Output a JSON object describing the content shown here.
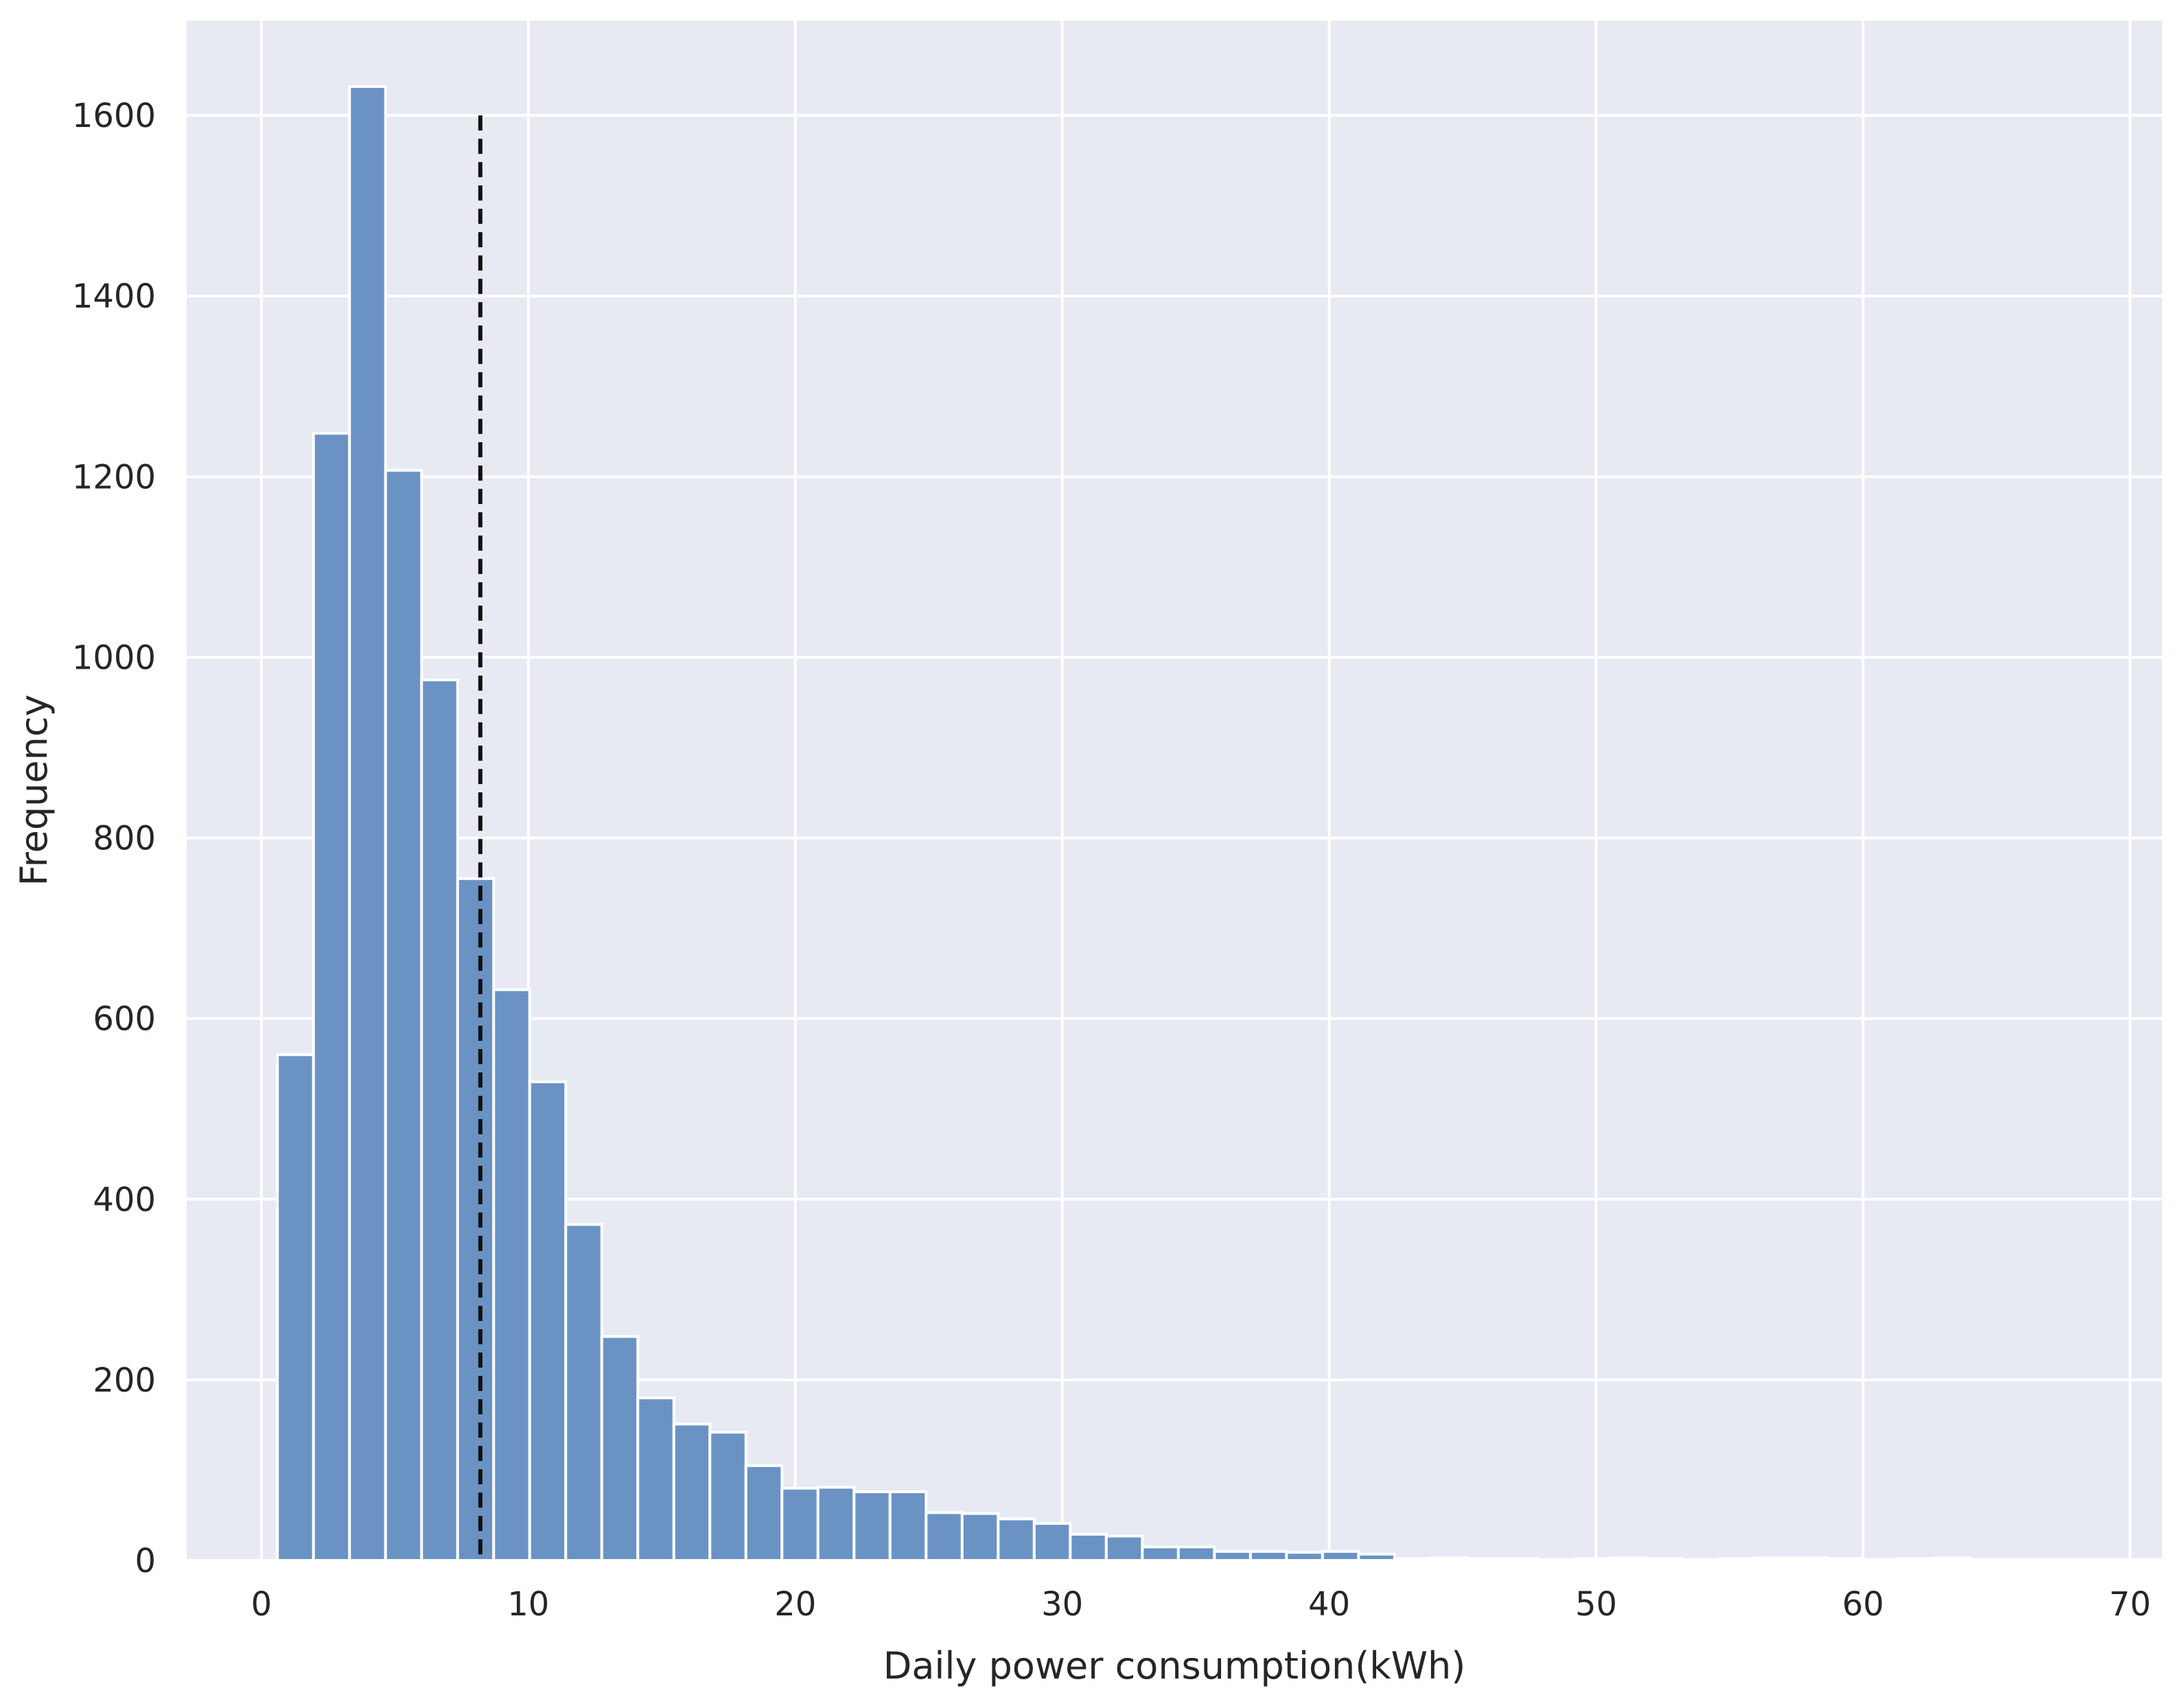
{
  "chart_data": {
    "type": "bar",
    "xlabel": "Daily power consumption(kWh)",
    "ylabel": "Frequency",
    "xlim": [
      -2.8,
      71.2
    ],
    "ylim": [
      0,
      1705
    ],
    "x_ticks": [
      0,
      10,
      20,
      30,
      40,
      50,
      60,
      70
    ],
    "y_ticks": [
      0,
      200,
      400,
      600,
      800,
      1000,
      1200,
      1400,
      1600
    ],
    "grid": true,
    "bin_width": 1.35,
    "bin_start": 0.6,
    "values": [
      560,
      1248,
      1632,
      1207,
      975,
      755,
      632,
      530,
      372,
      248,
      180,
      151,
      142,
      105,
      80,
      81,
      76,
      76,
      53,
      52,
      46,
      41,
      29,
      27,
      15,
      15,
      10,
      10,
      9,
      10,
      7,
      2,
      3,
      2,
      2,
      1,
      2,
      3,
      2,
      1,
      2,
      3,
      3,
      2,
      1,
      2,
      3,
      1,
      1,
      1,
      1,
      1,
      1,
      1,
      1,
      1,
      1,
      1,
      1,
      1,
      1,
      1,
      1,
      1,
      2,
      1,
      1,
      1,
      1,
      1
    ],
    "mean_line": {
      "x": 8.2,
      "y_top": 1600,
      "style": "dashed"
    },
    "colors": {
      "bar": "#6a93c4",
      "bar_edge": "#ffffff",
      "background": "#e7eaf2",
      "grid": "#ffffff",
      "mean_line": "#111111"
    }
  }
}
